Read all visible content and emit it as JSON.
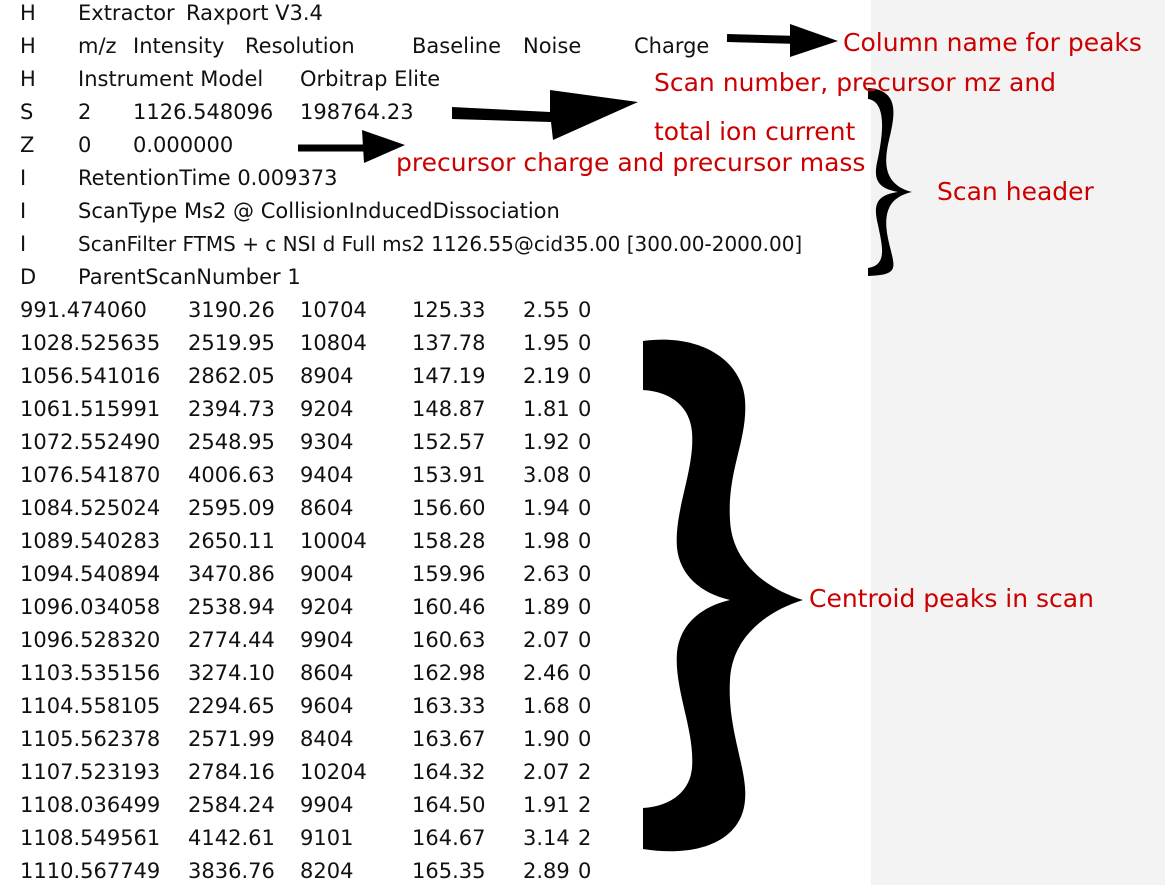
{
  "header_lines": [
    {
      "tag": "H",
      "cols": [
        "Extractor",
        "Raxport V3.4"
      ]
    },
    {
      "tag": "H",
      "cols": [
        "m/z",
        "Intensity",
        "Resolution",
        "Baseline",
        "Noise",
        "Charge"
      ]
    },
    {
      "tag": "H",
      "cols": [
        "Instrument Model",
        "Orbitrap Elite"
      ]
    },
    {
      "tag": "S",
      "cols": [
        "2",
        "1126.548096",
        "198764.23"
      ]
    },
    {
      "tag": "Z",
      "cols": [
        "0",
        "0.000000"
      ]
    },
    {
      "tag": "I",
      "cols": [
        "RetentionTime 0.009373"
      ]
    },
    {
      "tag": "I",
      "cols": [
        "ScanType Ms2 @ CollisionInducedDissociation"
      ]
    },
    {
      "tag": "I",
      "cols": [
        "ScanFilter FTMS + c NSI d Full ms2 1126.55@cid35.00 [300.00-2000.00]"
      ]
    },
    {
      "tag": "D",
      "cols": [
        "ParentScanNumber 1"
      ]
    }
  ],
  "peaks": [
    [
      "991.474060",
      "3190.26",
      "10704",
      "125.33",
      "2.55",
      "0"
    ],
    [
      "1028.525635",
      "2519.95",
      "10804",
      "137.78",
      "1.95",
      "0"
    ],
    [
      "1056.541016",
      "2862.05",
      "8904",
      "147.19",
      "2.19",
      "0"
    ],
    [
      "1061.515991",
      "2394.73",
      "9204",
      "148.87",
      "1.81",
      "0"
    ],
    [
      "1072.552490",
      "2548.95",
      "9304",
      "152.57",
      "1.92",
      "0"
    ],
    [
      "1076.541870",
      "4006.63",
      "9404",
      "153.91",
      "3.08",
      "0"
    ],
    [
      "1084.525024",
      "2595.09",
      "8604",
      "156.60",
      "1.94",
      "0"
    ],
    [
      "1089.540283",
      "2650.11",
      "10004",
      "158.28",
      "1.98",
      "0"
    ],
    [
      "1094.540894",
      "3470.86",
      "9004",
      "159.96",
      "2.63",
      "0"
    ],
    [
      "1096.034058",
      "2538.94",
      "9204",
      "160.46",
      "1.89",
      "0"
    ],
    [
      "1096.528320",
      "2774.44",
      "9904",
      "160.63",
      "2.07",
      "0"
    ],
    [
      "1103.535156",
      "3274.10",
      "8604",
      "162.98",
      "2.46",
      "0"
    ],
    [
      "1104.558105",
      "2294.65",
      "9604",
      "163.33",
      "1.68",
      "0"
    ],
    [
      "1105.562378",
      "2571.99",
      "8404",
      "163.67",
      "1.90",
      "0"
    ],
    [
      "1107.523193",
      "2784.16",
      "10204",
      "164.32",
      "2.07",
      "2"
    ],
    [
      "1108.036499",
      "2584.24",
      "9904",
      "164.50",
      "1.91",
      "2"
    ],
    [
      "1108.549561",
      "4142.61",
      "9101",
      "164.67",
      "3.14",
      "2"
    ],
    [
      "1110.567749",
      "3836.76",
      "8204",
      "165.35",
      "2.89",
      "0"
    ]
  ],
  "annotations": {
    "column_names": "Column name for peaks",
    "scan_info_line1": "Scan  number, precursor mz and",
    "scan_info_line2": "total ion current",
    "precursor": "precursor charge and precursor mass",
    "scan_header": "Scan header",
    "centroid": "Centroid peaks in scan"
  },
  "colors": {
    "annotation": "#cc0000",
    "text": "#111111",
    "side_panel": "#f3f3f3"
  }
}
